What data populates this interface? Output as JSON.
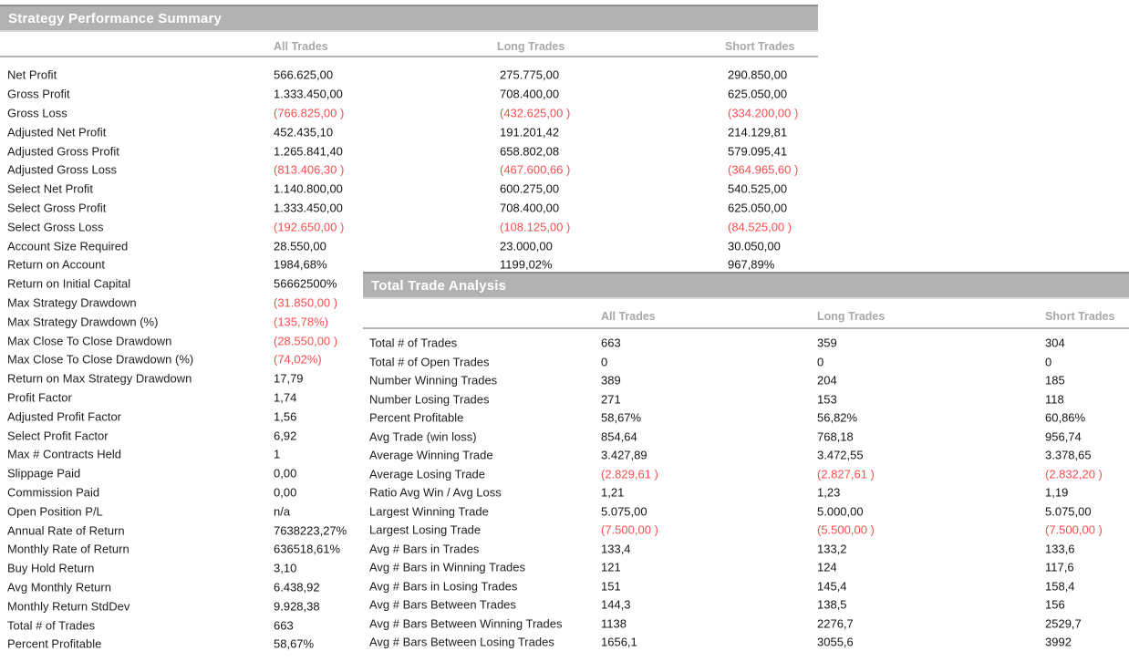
{
  "panel1": {
    "title": "Strategy Performance Summary",
    "columns": [
      "All Trades",
      "Long Trades",
      "Short Trades"
    ],
    "rows": [
      [
        "Net Profit",
        "566.625,00",
        "275.775,00",
        "290.850,00"
      ],
      [
        "Gross Profit",
        "1.333.450,00",
        "708.400,00",
        "625.050,00"
      ],
      [
        "Gross Loss",
        "(766.825,00 )",
        "(432.625,00 )",
        "(334.200,00 )"
      ],
      [
        "Adjusted Net Profit",
        "452.435,10",
        "191.201,42",
        "214.129,81"
      ],
      [
        "Adjusted Gross Profit",
        "1.265.841,40",
        "658.802,08",
        "579.095,41"
      ],
      [
        "Adjusted Gross Loss",
        "(813.406,30 )",
        "(467.600,66 )",
        "(364.965,60 )"
      ],
      [
        "Select Net Profit",
        "1.140.800,00",
        "600.275,00",
        "540.525,00"
      ],
      [
        "Select Gross Profit",
        "1.333.450,00",
        "708.400,00",
        "625.050,00"
      ],
      [
        "Select Gross Loss",
        "(192.650,00 )",
        "(108.125,00 )",
        "(84.525,00 )"
      ],
      [
        "Account Size Required",
        "28.550,00",
        "23.000,00",
        "30.050,00"
      ],
      [
        "Return on Account",
        "1984,68%",
        "1199,02%",
        "967,89%"
      ],
      [
        "Return on Initial Capital",
        "56662500%",
        "",
        ""
      ],
      [
        "Max Strategy Drawdown",
        "(31.850,00 )",
        "",
        ""
      ],
      [
        "Max Strategy Drawdown (%)",
        "(135,78%)",
        "",
        ""
      ],
      [
        "Max Close To Close Drawdown",
        "(28.550,00 )",
        "",
        ""
      ],
      [
        "Max Close To Close Drawdown (%)",
        "(74,02%)",
        "",
        ""
      ],
      [
        "Return on Max Strategy Drawdown",
        "17,79",
        "",
        ""
      ],
      [
        "Profit Factor",
        "1,74",
        "",
        ""
      ],
      [
        "Adjusted Profit Factor",
        "1,56",
        "",
        ""
      ],
      [
        "Select Profit Factor",
        "6,92",
        "",
        ""
      ],
      [
        "Max # Contracts Held",
        "1",
        "",
        ""
      ],
      [
        "Slippage Paid",
        "0,00",
        "",
        ""
      ],
      [
        "Commission Paid",
        "0,00",
        "",
        ""
      ],
      [
        "Open Position P/L",
        "n/a",
        "",
        ""
      ],
      [
        "Annual Rate of Return",
        "7638223,27%",
        "",
        ""
      ],
      [
        "Monthly Rate of Return",
        "636518,61%",
        "",
        ""
      ],
      [
        "Buy  Hold Return",
        "3,10",
        "",
        ""
      ],
      [
        "Avg Monthly Return",
        "6.438,92",
        "",
        ""
      ],
      [
        "Monthly Return StdDev",
        "9.928,38",
        "",
        ""
      ],
      [
        "Total # of Trades",
        "663",
        "",
        ""
      ],
      [
        "Percent Profitable",
        "58,67%",
        "",
        ""
      ]
    ]
  },
  "panel2": {
    "title": "Total Trade Analysis",
    "columns": [
      "All Trades",
      "Long Trades",
      "Short Trades"
    ],
    "rows": [
      [
        "Total # of Trades",
        "663",
        "359",
        "304"
      ],
      [
        "Total # of Open Trades",
        "0",
        "0",
        "0"
      ],
      [
        "Number Winning Trades",
        "389",
        "204",
        "185"
      ],
      [
        "Number Losing Trades",
        "271",
        "153",
        "118"
      ],
      [
        "Percent Profitable",
        "58,67%",
        "56,82%",
        "60,86%"
      ],
      [
        "Avg Trade (win  loss)",
        "854,64",
        "768,18",
        "956,74"
      ],
      [
        "Average Winning Trade",
        "3.427,89",
        "3.472,55",
        "3.378,65"
      ],
      [
        "Average Losing Trade",
        "(2.829,61 )",
        "(2.827,61 )",
        "(2.832,20 )"
      ],
      [
        "Ratio Avg Win / Avg Loss",
        "1,21",
        "1,23",
        "1,19"
      ],
      [
        "Largest Winning Trade",
        "5.075,00",
        "5.000,00",
        "5.075,00"
      ],
      [
        "Largest Losing Trade",
        "(7.500,00 )",
        "(5.500,00 )",
        "(7.500,00 )"
      ],
      [
        "Avg # Bars in Trades",
        "133,4",
        "133,2",
        "133,6"
      ],
      [
        "Avg # Bars in Winning Trades",
        "121",
        "124",
        "117,6"
      ],
      [
        "Avg # Bars in Losing Trades",
        "151",
        "145,4",
        "158,4"
      ],
      [
        "Avg # Bars Between Trades",
        "144,3",
        "138,5",
        "156"
      ],
      [
        "Avg # Bars Between Winning Trades",
        "1138",
        "2276,7",
        "2529,7"
      ],
      [
        "Avg # Bars Between Losing Trades",
        "1656,1",
        "3055,6",
        "3992"
      ]
    ]
  },
  "colors": {
    "negative_value": "#fb4d4f",
    "section_bar_background": "#b2b2b2",
    "column_header_text": "#a8a8a8",
    "section_bar_text": "#ffffff"
  }
}
